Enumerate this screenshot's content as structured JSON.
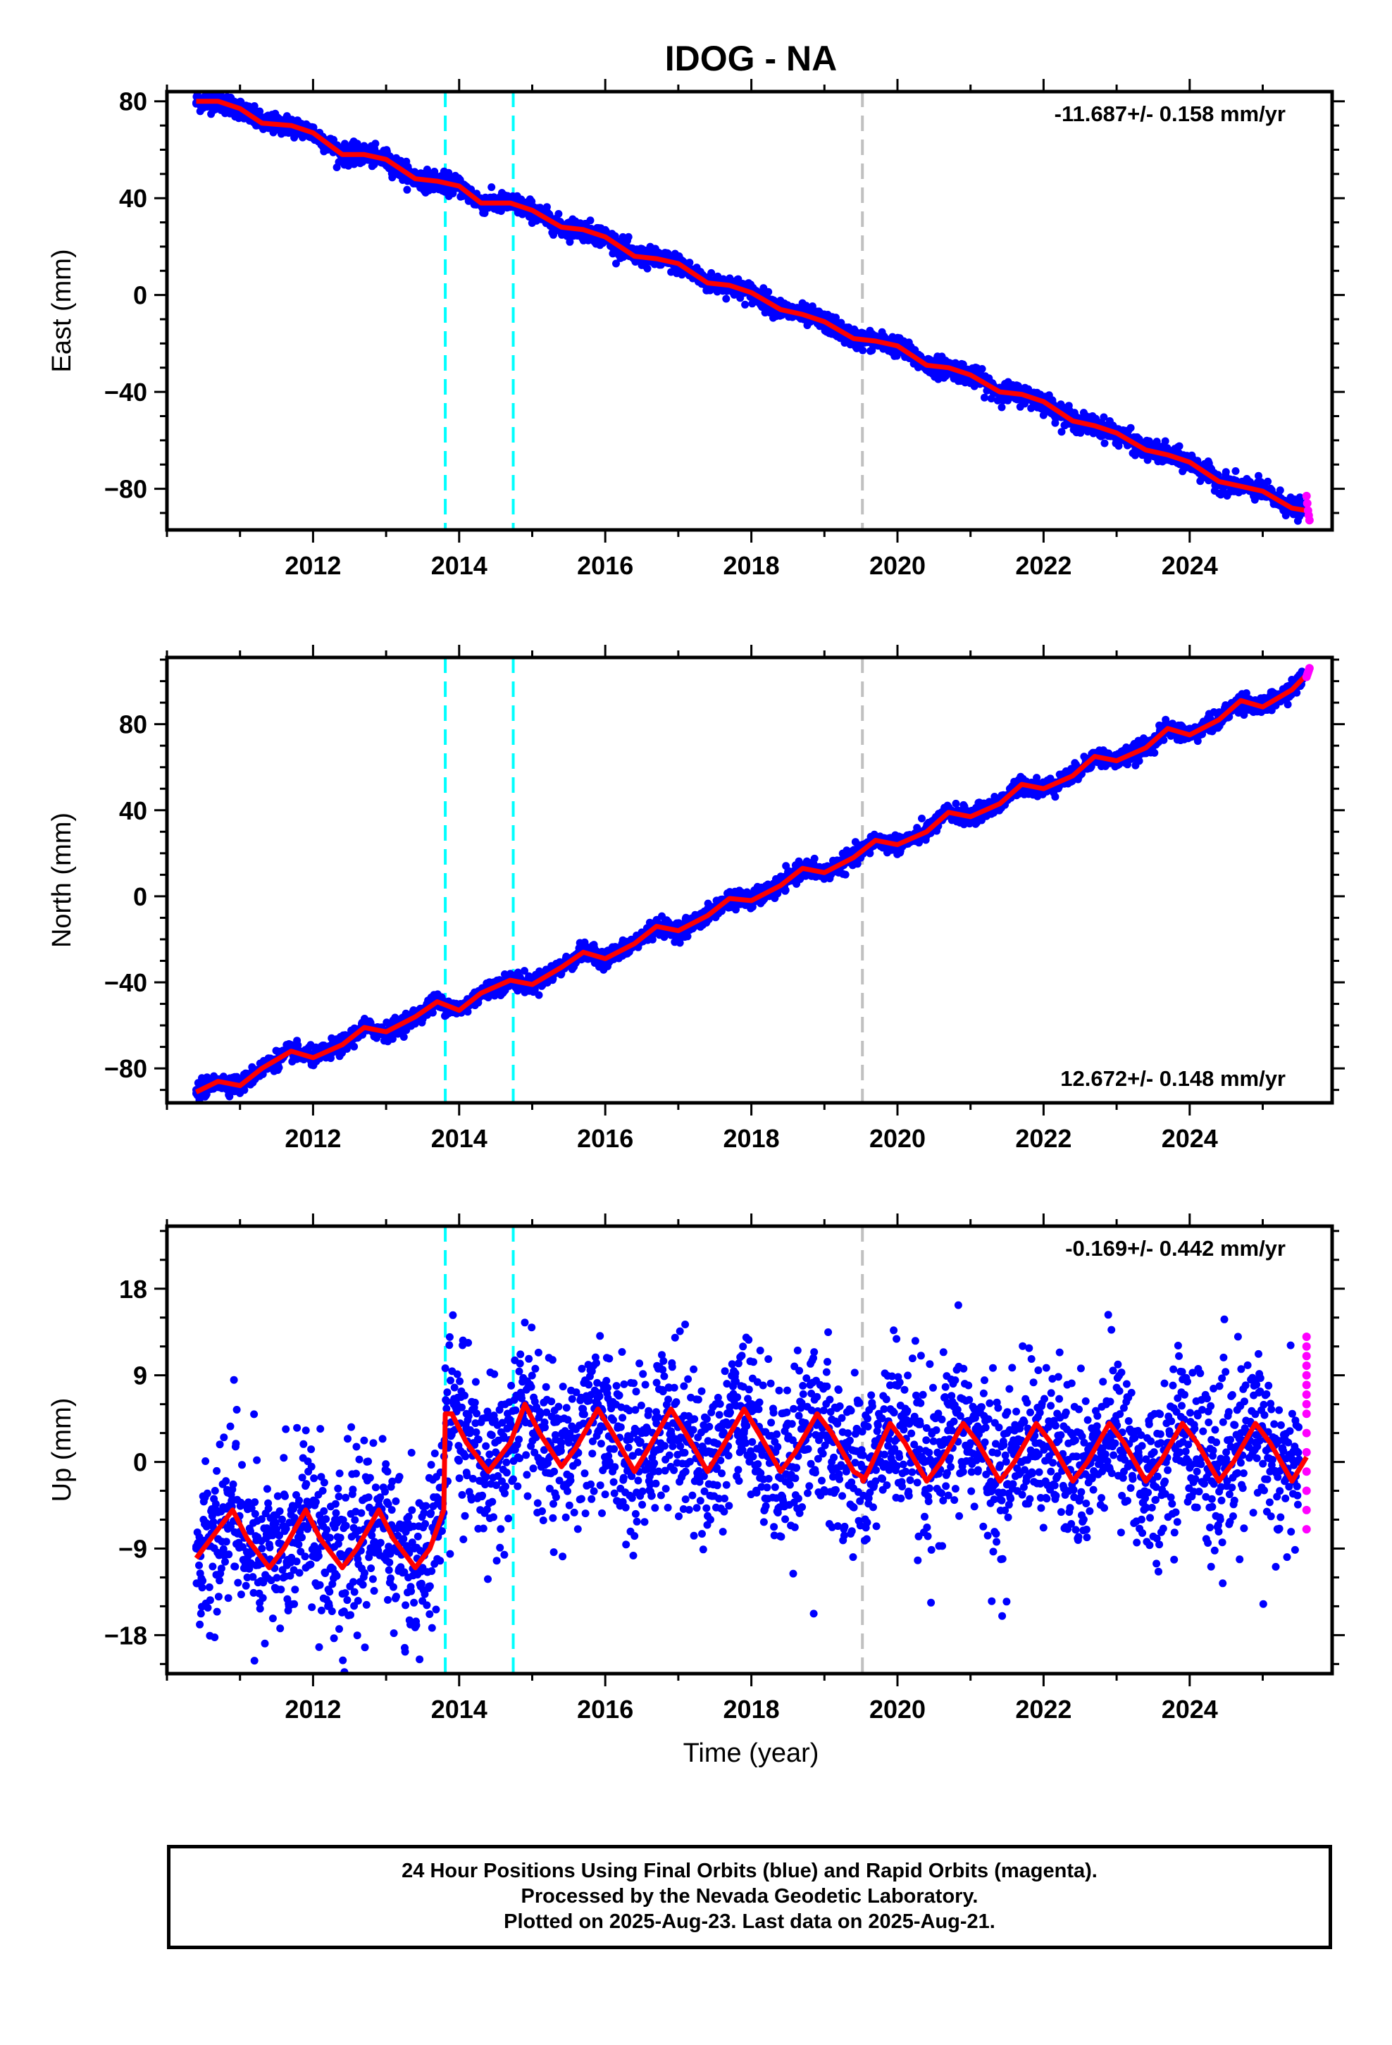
{
  "title": "IDOG - NA",
  "xlabel": "Time (year)",
  "footer": {
    "line1": "24 Hour Positions Using Final Orbits (blue) and Rapid Orbits (magenta).",
    "line2": "Processed by the Nevada Geodetic Laboratory.",
    "line3": "Plotted on 2025-Aug-23. Last data on 2025-Aug-21."
  },
  "colors": {
    "final_orbit_points": "#0000ff",
    "rapid_orbit_points": "#ff00ff",
    "model_line": "#ff0000",
    "equipment_change_lines": "#00ffff",
    "earthquake_line": "#c0c0c0"
  },
  "chart_data": [
    {
      "type": "scatter",
      "ylabel": "East (mm)",
      "rate_label": "-11.687+/- 0.158 mm/yr",
      "rate_position": "top-right",
      "xlim": [
        2010.0,
        2025.95
      ],
      "ylim": [
        -97,
        84
      ],
      "x_ticks": [
        2012,
        2014,
        2016,
        2018,
        2020,
        2022,
        2024
      ],
      "y_ticks": [
        80,
        40,
        0,
        -40,
        -80
      ],
      "y_tick_labels": [
        "80",
        "40",
        "0",
        "−40",
        "−80"
      ],
      "series": [
        {
          "name": "Final Orbits",
          "color": "#0000ff",
          "x": [
            2010.4,
            2010.7,
            2011.0,
            2011.3,
            2011.7,
            2012.0,
            2012.4,
            2012.7,
            2013.0,
            2013.4,
            2013.7,
            2014.0,
            2014.3,
            2014.7,
            2015.0,
            2015.4,
            2015.7,
            2016.0,
            2016.4,
            2016.7,
            2017.0,
            2017.4,
            2017.7,
            2018.0,
            2018.4,
            2018.7,
            2019.0,
            2019.4,
            2019.7,
            2020.0,
            2020.4,
            2020.7,
            2021.0,
            2021.4,
            2021.7,
            2022.0,
            2022.4,
            2022.7,
            2023.0,
            2023.4,
            2023.7,
            2024.0,
            2024.4,
            2024.7,
            2025.0,
            2025.4,
            2025.55
          ],
          "y": [
            79,
            79,
            77,
            71,
            70,
            67,
            58,
            58,
            56,
            48,
            47,
            45,
            38,
            38,
            35,
            28,
            26,
            24,
            16,
            15,
            13,
            5,
            3,
            1,
            -6,
            -8,
            -11,
            -18,
            -19,
            -21,
            -29,
            -30,
            -33,
            -40,
            -41,
            -44,
            -52,
            -54,
            -57,
            -64,
            -66,
            -69,
            -77,
            -79,
            -81,
            -88,
            -90
          ]
        },
        {
          "name": "Rapid Orbits",
          "color": "#ff00ff",
          "x": [
            2025.6,
            2025.61,
            2025.62,
            2025.63,
            2025.64
          ],
          "y": [
            -83,
            -86,
            -89,
            -91,
            -93
          ]
        }
      ],
      "model": {
        "name": "Model",
        "color": "#ff0000",
        "x": [
          2010.4,
          2010.7,
          2011.0,
          2011.3,
          2011.7,
          2012.0,
          2012.4,
          2012.7,
          2013.0,
          2013.4,
          2013.7,
          2014.0,
          2014.3,
          2014.7,
          2015.0,
          2015.4,
          2015.7,
          2016.0,
          2016.4,
          2016.7,
          2017.0,
          2017.4,
          2017.7,
          2018.0,
          2018.4,
          2018.7,
          2019.0,
          2019.4,
          2019.7,
          2020.0,
          2020.4,
          2020.7,
          2021.0,
          2021.4,
          2021.7,
          2022.0,
          2022.4,
          2022.7,
          2023.0,
          2023.4,
          2023.7,
          2024.0,
          2024.4,
          2024.7,
          2025.0,
          2025.4,
          2025.6
        ],
        "y": [
          80,
          80,
          77,
          71,
          70,
          67,
          58,
          58,
          56,
          48,
          47,
          45,
          38,
          38,
          35,
          28,
          27,
          24,
          16,
          15,
          13,
          5,
          4,
          1,
          -6,
          -8,
          -11,
          -18,
          -19,
          -21,
          -29,
          -30,
          -33,
          -40,
          -41,
          -44,
          -52,
          -54,
          -57,
          -64,
          -66,
          -69,
          -77,
          -79,
          -81,
          -88,
          -89
        ]
      },
      "vlines": [
        {
          "x": 2013.81,
          "color": "#00ffff",
          "style": "dashed"
        },
        {
          "x": 2014.74,
          "color": "#00ffff",
          "style": "dashed"
        },
        {
          "x": 2019.52,
          "color": "#c0c0c0",
          "style": "dashed"
        }
      ]
    },
    {
      "type": "scatter",
      "ylabel": "North (mm)",
      "rate_label": "12.672+/- 0.148 mm/yr",
      "rate_position": "bottom-right",
      "xlim": [
        2010.0,
        2025.95
      ],
      "ylim": [
        -96,
        111
      ],
      "x_ticks": [
        2012,
        2014,
        2016,
        2018,
        2020,
        2022,
        2024
      ],
      "y_ticks": [
        80,
        40,
        0,
        -40,
        -80
      ],
      "y_tick_labels": [
        "80",
        "40",
        "0",
        "−40",
        "−80"
      ],
      "series": [
        {
          "name": "Final Orbits",
          "color": "#0000ff",
          "x": [
            2010.4,
            2010.7,
            2011.0,
            2011.3,
            2011.7,
            2012.0,
            2012.4,
            2012.7,
            2013.0,
            2013.4,
            2013.7,
            2014.0,
            2014.3,
            2014.7,
            2015.0,
            2015.4,
            2015.7,
            2016.0,
            2016.4,
            2016.7,
            2017.0,
            2017.4,
            2017.7,
            2018.0,
            2018.4,
            2018.7,
            2019.0,
            2019.4,
            2019.7,
            2020.0,
            2020.4,
            2020.7,
            2021.0,
            2021.4,
            2021.7,
            2022.0,
            2022.4,
            2022.7,
            2023.0,
            2023.4,
            2023.7,
            2024.0,
            2024.4,
            2024.7,
            2025.0,
            2025.4,
            2025.55
          ],
          "y": [
            -90,
            -85,
            -88,
            -80,
            -71,
            -75,
            -69,
            -60,
            -63,
            -56,
            -48,
            -53,
            -45,
            -39,
            -41,
            -33,
            -26,
            -29,
            -22,
            -13,
            -16,
            -9,
            0,
            -2,
            5,
            14,
            11,
            18,
            27,
            25,
            30,
            40,
            37,
            43,
            53,
            51,
            56,
            66,
            63,
            69,
            78,
            76,
            82,
            91,
            89,
            96,
            102
          ]
        },
        {
          "name": "Rapid Orbits",
          "color": "#ff00ff",
          "x": [
            2025.6,
            2025.61,
            2025.62,
            2025.63,
            2025.64
          ],
          "y": [
            102,
            103,
            104,
            105,
            106
          ]
        }
      ],
      "model": {
        "name": "Model",
        "color": "#ff0000",
        "x": [
          2010.4,
          2010.7,
          2011.0,
          2011.3,
          2011.7,
          2012.0,
          2012.4,
          2012.7,
          2013.0,
          2013.4,
          2013.7,
          2014.0,
          2014.3,
          2014.7,
          2015.0,
          2015.4,
          2015.7,
          2016.0,
          2016.4,
          2016.7,
          2017.0,
          2017.4,
          2017.7,
          2018.0,
          2018.4,
          2018.7,
          2019.0,
          2019.4,
          2019.7,
          2020.0,
          2020.4,
          2020.7,
          2021.0,
          2021.4,
          2021.7,
          2022.0,
          2022.4,
          2022.7,
          2023.0,
          2023.4,
          2023.7,
          2024.0,
          2024.4,
          2024.7,
          2025.0,
          2025.4,
          2025.6
        ],
        "y": [
          -91,
          -86,
          -88,
          -80,
          -72,
          -75,
          -69,
          -61,
          -63,
          -56,
          -49,
          -53,
          -45,
          -39,
          -41,
          -33,
          -26,
          -29,
          -22,
          -14,
          -16,
          -9,
          -1,
          -2,
          5,
          13,
          11,
          18,
          26,
          24,
          30,
          39,
          37,
          43,
          52,
          50,
          56,
          65,
          63,
          69,
          78,
          75,
          82,
          91,
          88,
          96,
          103
        ]
      },
      "vlines": [
        {
          "x": 2013.81,
          "color": "#00ffff",
          "style": "dashed"
        },
        {
          "x": 2014.74,
          "color": "#00ffff",
          "style": "dashed"
        },
        {
          "x": 2019.52,
          "color": "#c0c0c0",
          "style": "dashed"
        }
      ]
    },
    {
      "type": "scatter",
      "ylabel": "Up (mm)",
      "rate_label": "-0.169+/- 0.442 mm/yr",
      "rate_position": "top-right",
      "xlim": [
        2010.0,
        2025.95
      ],
      "ylim": [
        -22,
        24.5
      ],
      "x_ticks": [
        2012,
        2014,
        2016,
        2018,
        2020,
        2022,
        2024
      ],
      "y_ticks": [
        18,
        9,
        0,
        -9,
        -18
      ],
      "y_tick_labels": [
        "18",
        "9",
        "0",
        "−9",
        "−18"
      ],
      "series": [
        {
          "name": "Final Orbits",
          "color": "#0000ff",
          "x": [
            2010.4,
            2010.5,
            2010.7,
            2010.9,
            2011.1,
            2011.3,
            2011.5,
            2011.7,
            2011.9,
            2012.1,
            2012.3,
            2012.5,
            2012.7,
            2012.9,
            2013.1,
            2013.3,
            2013.5,
            2013.7,
            2013.9,
            2014.1,
            2014.3,
            2014.5,
            2014.7,
            2014.9,
            2015.1,
            2015.3,
            2015.5,
            2015.7,
            2015.9,
            2016.1,
            2016.3,
            2016.5,
            2016.7,
            2016.9,
            2017.1,
            2017.3,
            2017.5,
            2017.7,
            2017.9,
            2018.1,
            2018.3,
            2018.5,
            2018.7,
            2018.9,
            2019.1,
            2019.3,
            2019.5,
            2019.7,
            2019.9,
            2020.1,
            2020.3,
            2020.5,
            2020.7,
            2020.9,
            2021.1,
            2021.3,
            2021.5,
            2021.7,
            2021.9,
            2022.1,
            2022.3,
            2022.5,
            2022.7,
            2022.9,
            2023.1,
            2023.3,
            2023.5,
            2023.7,
            2023.9,
            2024.1,
            2024.3,
            2024.5,
            2024.7,
            2024.9,
            2025.1,
            2025.3,
            2025.5
          ],
          "y": [
            -9,
            -6,
            -8,
            -4,
            -12,
            -9,
            -7,
            -5,
            -11,
            -8,
            -6,
            -10,
            -7,
            -4,
            -13,
            -9,
            -11,
            -6,
            3,
            5,
            -2,
            1,
            4,
            6,
            0,
            -1,
            2,
            4,
            6,
            -1,
            0,
            3,
            4,
            5,
            -1,
            1,
            2,
            5,
            3,
            -1,
            0,
            4,
            2,
            5,
            0,
            -1,
            1,
            -2,
            3,
            4,
            -1,
            0,
            2,
            3,
            -1,
            1,
            3,
            4,
            1,
            -1,
            0,
            3,
            2,
            4,
            -1,
            1,
            0,
            2,
            3,
            -1,
            -2,
            1,
            3,
            2,
            -1,
            -2,
            0
          ]
        },
        {
          "name": "Rapid Orbits",
          "color": "#ff00ff",
          "x": [
            2025.6,
            2025.6,
            2025.6,
            2025.6,
            2025.6,
            2025.6,
            2025.6,
            2025.6,
            2025.6,
            2025.6,
            2025.6,
            2025.6,
            2025.6,
            2025.6,
            2025.6
          ],
          "y": [
            13,
            12,
            11,
            10,
            9,
            8,
            7,
            6,
            5,
            3,
            1,
            -1,
            -3,
            -5,
            -7
          ]
        }
      ],
      "model": {
        "name": "Model",
        "color": "#ff0000",
        "x": [
          2010.4,
          2010.6,
          2010.9,
          2011.1,
          2011.4,
          2011.6,
          2011.9,
          2012.1,
          2012.4,
          2012.6,
          2012.9,
          2013.1,
          2013.4,
          2013.6,
          2013.79,
          2013.81,
          2013.9,
          2014.1,
          2014.4,
          2014.7,
          2014.9,
          2015.1,
          2015.4,
          2015.6,
          2015.9,
          2016.1,
          2016.4,
          2016.6,
          2016.9,
          2017.1,
          2017.4,
          2017.6,
          2017.9,
          2018.1,
          2018.4,
          2018.6,
          2018.9,
          2019.1,
          2019.4,
          2019.51,
          2019.53,
          2019.6,
          2019.9,
          2020.1,
          2020.4,
          2020.6,
          2020.9,
          2021.1,
          2021.4,
          2021.6,
          2021.9,
          2022.1,
          2022.4,
          2022.6,
          2022.9,
          2023.1,
          2023.4,
          2023.6,
          2023.9,
          2024.1,
          2024.4,
          2024.6,
          2024.9,
          2025.1,
          2025.4,
          2025.6
        ],
        "y": [
          -10,
          -8,
          -5,
          -8,
          -11,
          -9,
          -5,
          -8,
          -11,
          -9,
          -5,
          -8,
          -11,
          -9,
          -5,
          5,
          5,
          2,
          -1,
          2,
          6,
          3,
          -0.5,
          1.5,
          5.5,
          3,
          -1,
          1.5,
          5.5,
          3,
          -1,
          1.5,
          5.5,
          3,
          -1,
          1,
          5,
          3,
          -1,
          -1.5,
          -2,
          -1,
          4,
          2,
          -2,
          0,
          4,
          2,
          -2,
          0,
          4,
          2,
          -2,
          0,
          4,
          2,
          -2,
          0,
          4,
          2,
          -2,
          0,
          4,
          2,
          -2,
          0.5
        ]
      },
      "vlines": [
        {
          "x": 2013.81,
          "color": "#00ffff",
          "style": "dashed"
        },
        {
          "x": 2014.74,
          "color": "#00ffff",
          "style": "dashed"
        },
        {
          "x": 2019.52,
          "color": "#c0c0c0",
          "style": "dashed"
        }
      ]
    }
  ]
}
